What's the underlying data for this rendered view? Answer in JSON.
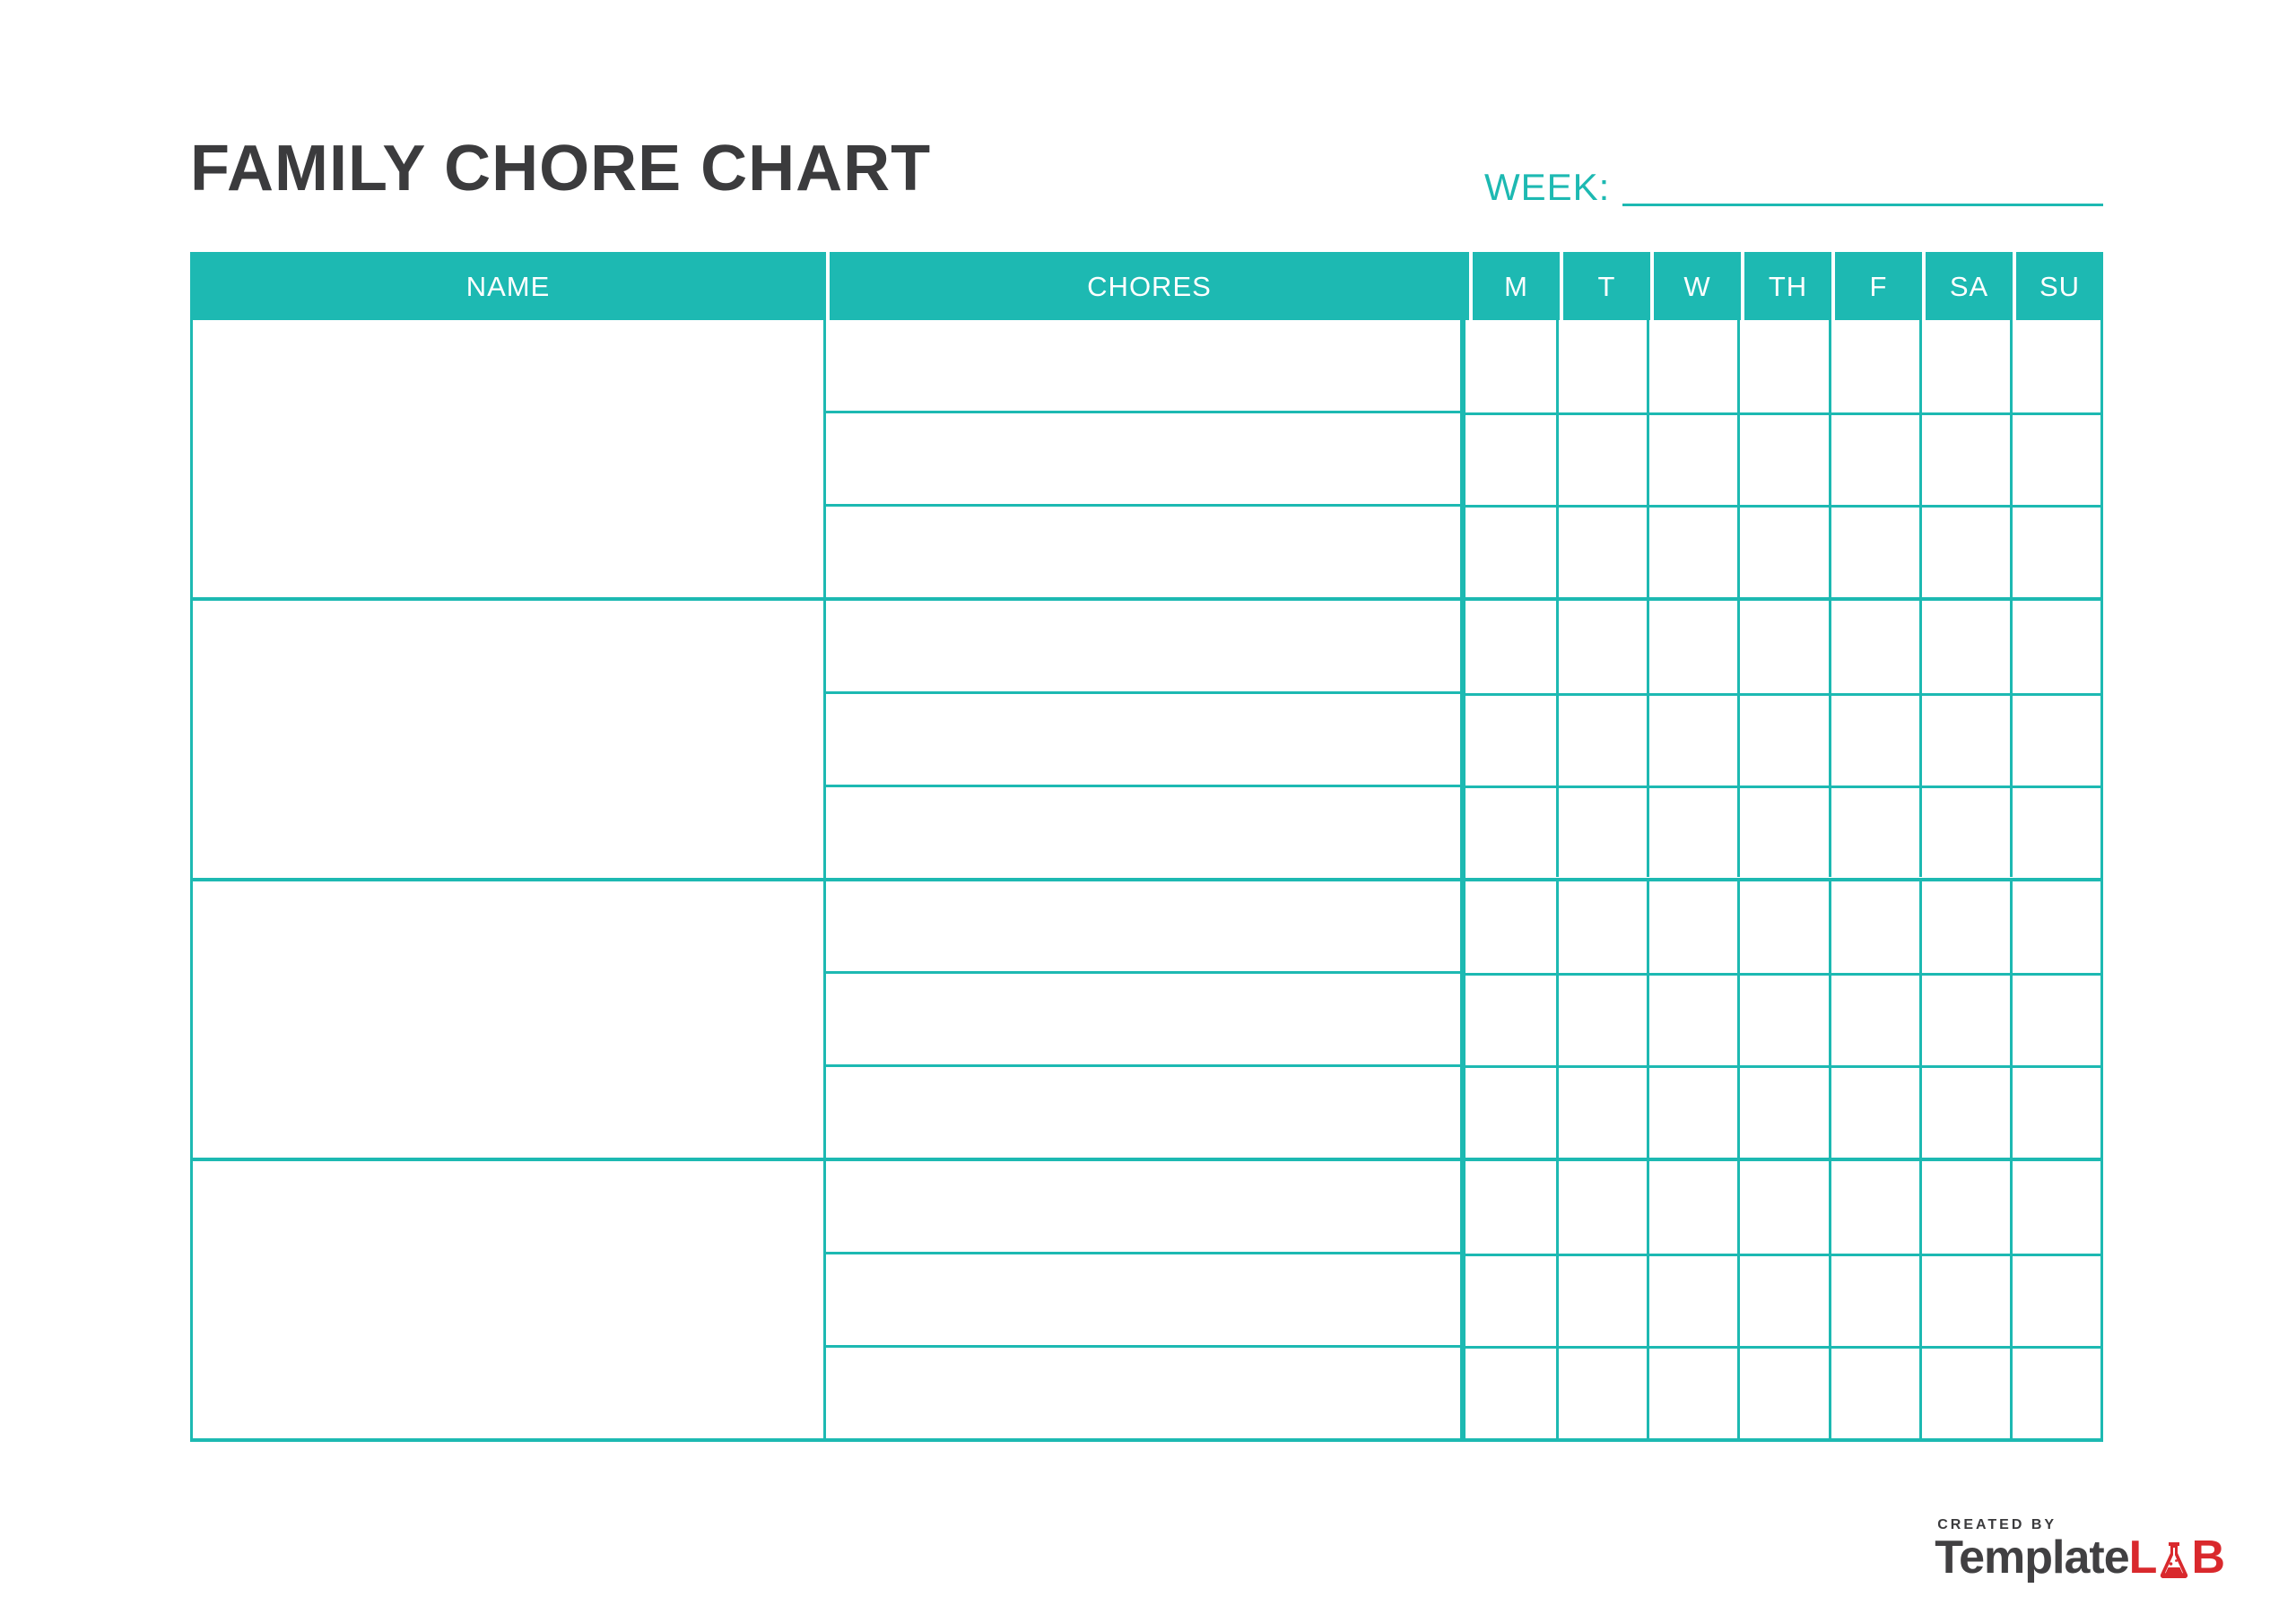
{
  "title": "FAMILY CHORE CHART",
  "week": {
    "label": "WEEK:",
    "value": ""
  },
  "table": {
    "name_header": "NAME",
    "chores_header": "CHORES",
    "day_labels": [
      "M",
      "T",
      "W",
      "TH",
      "F",
      "SA",
      "SU"
    ],
    "group_count": 4,
    "chores_per_group": 3
  },
  "colors": {
    "teal": "#1db9b2",
    "heading": "#3b3b3d",
    "logo_red": "#d9292d",
    "logo_gray": "#414042"
  },
  "footer": {
    "created_by": "CREATED BY",
    "brand_prefix": "Template",
    "brand_l": "L",
    "brand_b": "B",
    "flask_icon": "erlenmeyer-flask"
  }
}
